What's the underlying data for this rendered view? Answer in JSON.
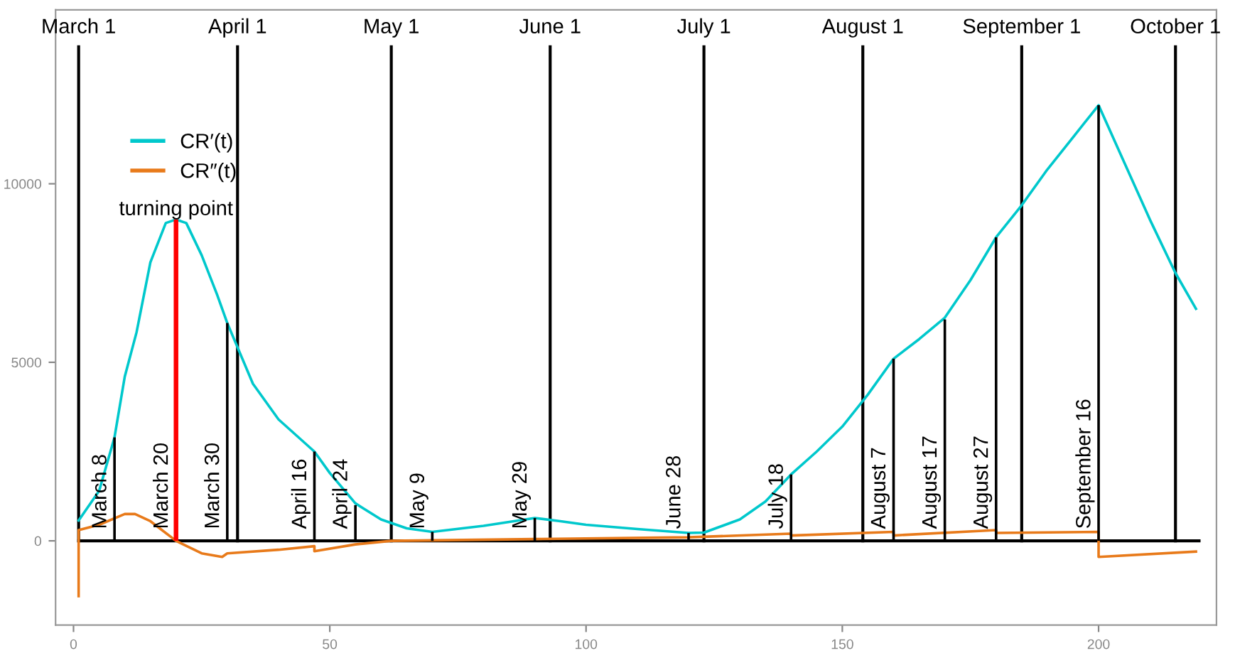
{
  "chart_data": {
    "type": "line",
    "xlim": [
      -3.5,
      223
    ],
    "ylim": [
      -2360,
      14870
    ],
    "xticks": [
      0,
      50,
      100,
      150,
      200
    ],
    "yticks": [
      0,
      5000,
      {
        "value": 10000,
        "label": "10000"
      }
    ],
    "grid": false,
    "legend": "top left",
    "marker": "none",
    "line_style": "solid",
    "series": [
      {
        "name": "CR′(t)",
        "color": "#00c8cc",
        "x": [
          1,
          5,
          8,
          10,
          12.3,
          15,
          18,
          20,
          22,
          25,
          28,
          30,
          35,
          40,
          47,
          50,
          55,
          60,
          65,
          70,
          80,
          90,
          95,
          100,
          110,
          120,
          123,
          130,
          135,
          140,
          145,
          150,
          155,
          160,
          165,
          170,
          175,
          180,
          185,
          190,
          195,
          200,
          205,
          210,
          215,
          219
        ],
        "values": [
          570,
          1400,
          2900,
          4600,
          5840,
          7800,
          8900,
          9000,
          8900,
          8000,
          6900,
          6100,
          4400,
          3400,
          2500,
          1900,
          1050,
          600,
          350,
          250,
          420,
          640,
          550,
          450,
          330,
          220,
          230,
          600,
          1100,
          1860,
          2500,
          3200,
          4100,
          5100,
          5650,
          6250,
          7300,
          8500,
          9400,
          10400,
          11300,
          12200,
          10600,
          9000,
          7500,
          6500
        ]
      },
      {
        "name": "CR″(t)",
        "color": "#e87a1a",
        "x": [
          1,
          1,
          5,
          10,
          12,
          15,
          20,
          25,
          29,
          30,
          40,
          47,
          47,
          55,
          62,
          90,
          120,
          140,
          140,
          160,
          160,
          180,
          180,
          200,
          200,
          219
        ],
        "values": [
          -1550,
          300,
          450,
          750,
          750,
          550,
          0,
          -350,
          -450,
          -350,
          -250,
          -150,
          -290,
          -100,
          0,
          50,
          100,
          200,
          150,
          250,
          150,
          300,
          220,
          250,
          -450,
          -300
        ]
      },
      {
        "type": "bar",
        "color": "#000000",
        "colors": [
          "#000000",
          "#ff0000",
          "#000000",
          "#000000",
          "#000000",
          "#000000",
          "#000000",
          "#000000",
          "#000000",
          "#000000",
          "#000000",
          "#000000",
          "#000000"
        ],
        "x": [
          8,
          20,
          30,
          47,
          55,
          70,
          90,
          120,
          140,
          160,
          170,
          180,
          200
        ],
        "values": [
          2900,
          9000,
          6100,
          2500,
          1000,
          250,
          640,
          220,
          1860,
          5100,
          6200,
          8500,
          12200
        ]
      }
    ],
    "ref_lines": [
      {
        "axis": "y",
        "value": 0,
        "color": "#000000"
      },
      {
        "axis": "x",
        "value": 1,
        "label": "March 1",
        "color": "#000000"
      },
      {
        "axis": "x",
        "value": 32,
        "label": "April 1",
        "color": "#000000"
      },
      {
        "axis": "x",
        "value": 62,
        "label": "May 1",
        "color": "#000000"
      },
      {
        "axis": "x",
        "value": 93,
        "label": "June 1",
        "color": "#000000"
      },
      {
        "axis": "x",
        "value": 123,
        "label": "July 1",
        "color": "#000000"
      },
      {
        "axis": "x",
        "value": 154,
        "label": "August 1",
        "color": "#000000"
      },
      {
        "axis": "x",
        "value": 185,
        "label": "September 1",
        "color": "#000000"
      },
      {
        "axis": "x",
        "value": 215,
        "label": "October 1",
        "color": "#000000"
      }
    ],
    "annotations": [
      {
        "text": "turning point",
        "x": 20,
        "y": 9000
      },
      {
        "text": "March 8",
        "x": 8,
        "y": 0
      },
      {
        "text": "March 20",
        "x": 20,
        "y": 0
      },
      {
        "text": "March 30",
        "x": 30,
        "y": 0
      },
      {
        "text": "April 16",
        "x": 47,
        "y": 0
      },
      {
        "text": "April 24",
        "x": 55,
        "y": 0
      },
      {
        "text": "May 9",
        "x": 70,
        "y": 0
      },
      {
        "text": "May 29",
        "x": 90,
        "y": 0
      },
      {
        "text": "June 28",
        "x": 120,
        "y": 0
      },
      {
        "text": "July 18",
        "x": 140,
        "y": 0
      },
      {
        "text": "August 7",
        "x": 160,
        "y": 0
      },
      {
        "text": "August 17",
        "x": 170,
        "y": 0
      },
      {
        "text": "August 27",
        "x": 180,
        "y": 0
      },
      {
        "text": "September 16",
        "x": 200,
        "y": 0
      }
    ]
  }
}
